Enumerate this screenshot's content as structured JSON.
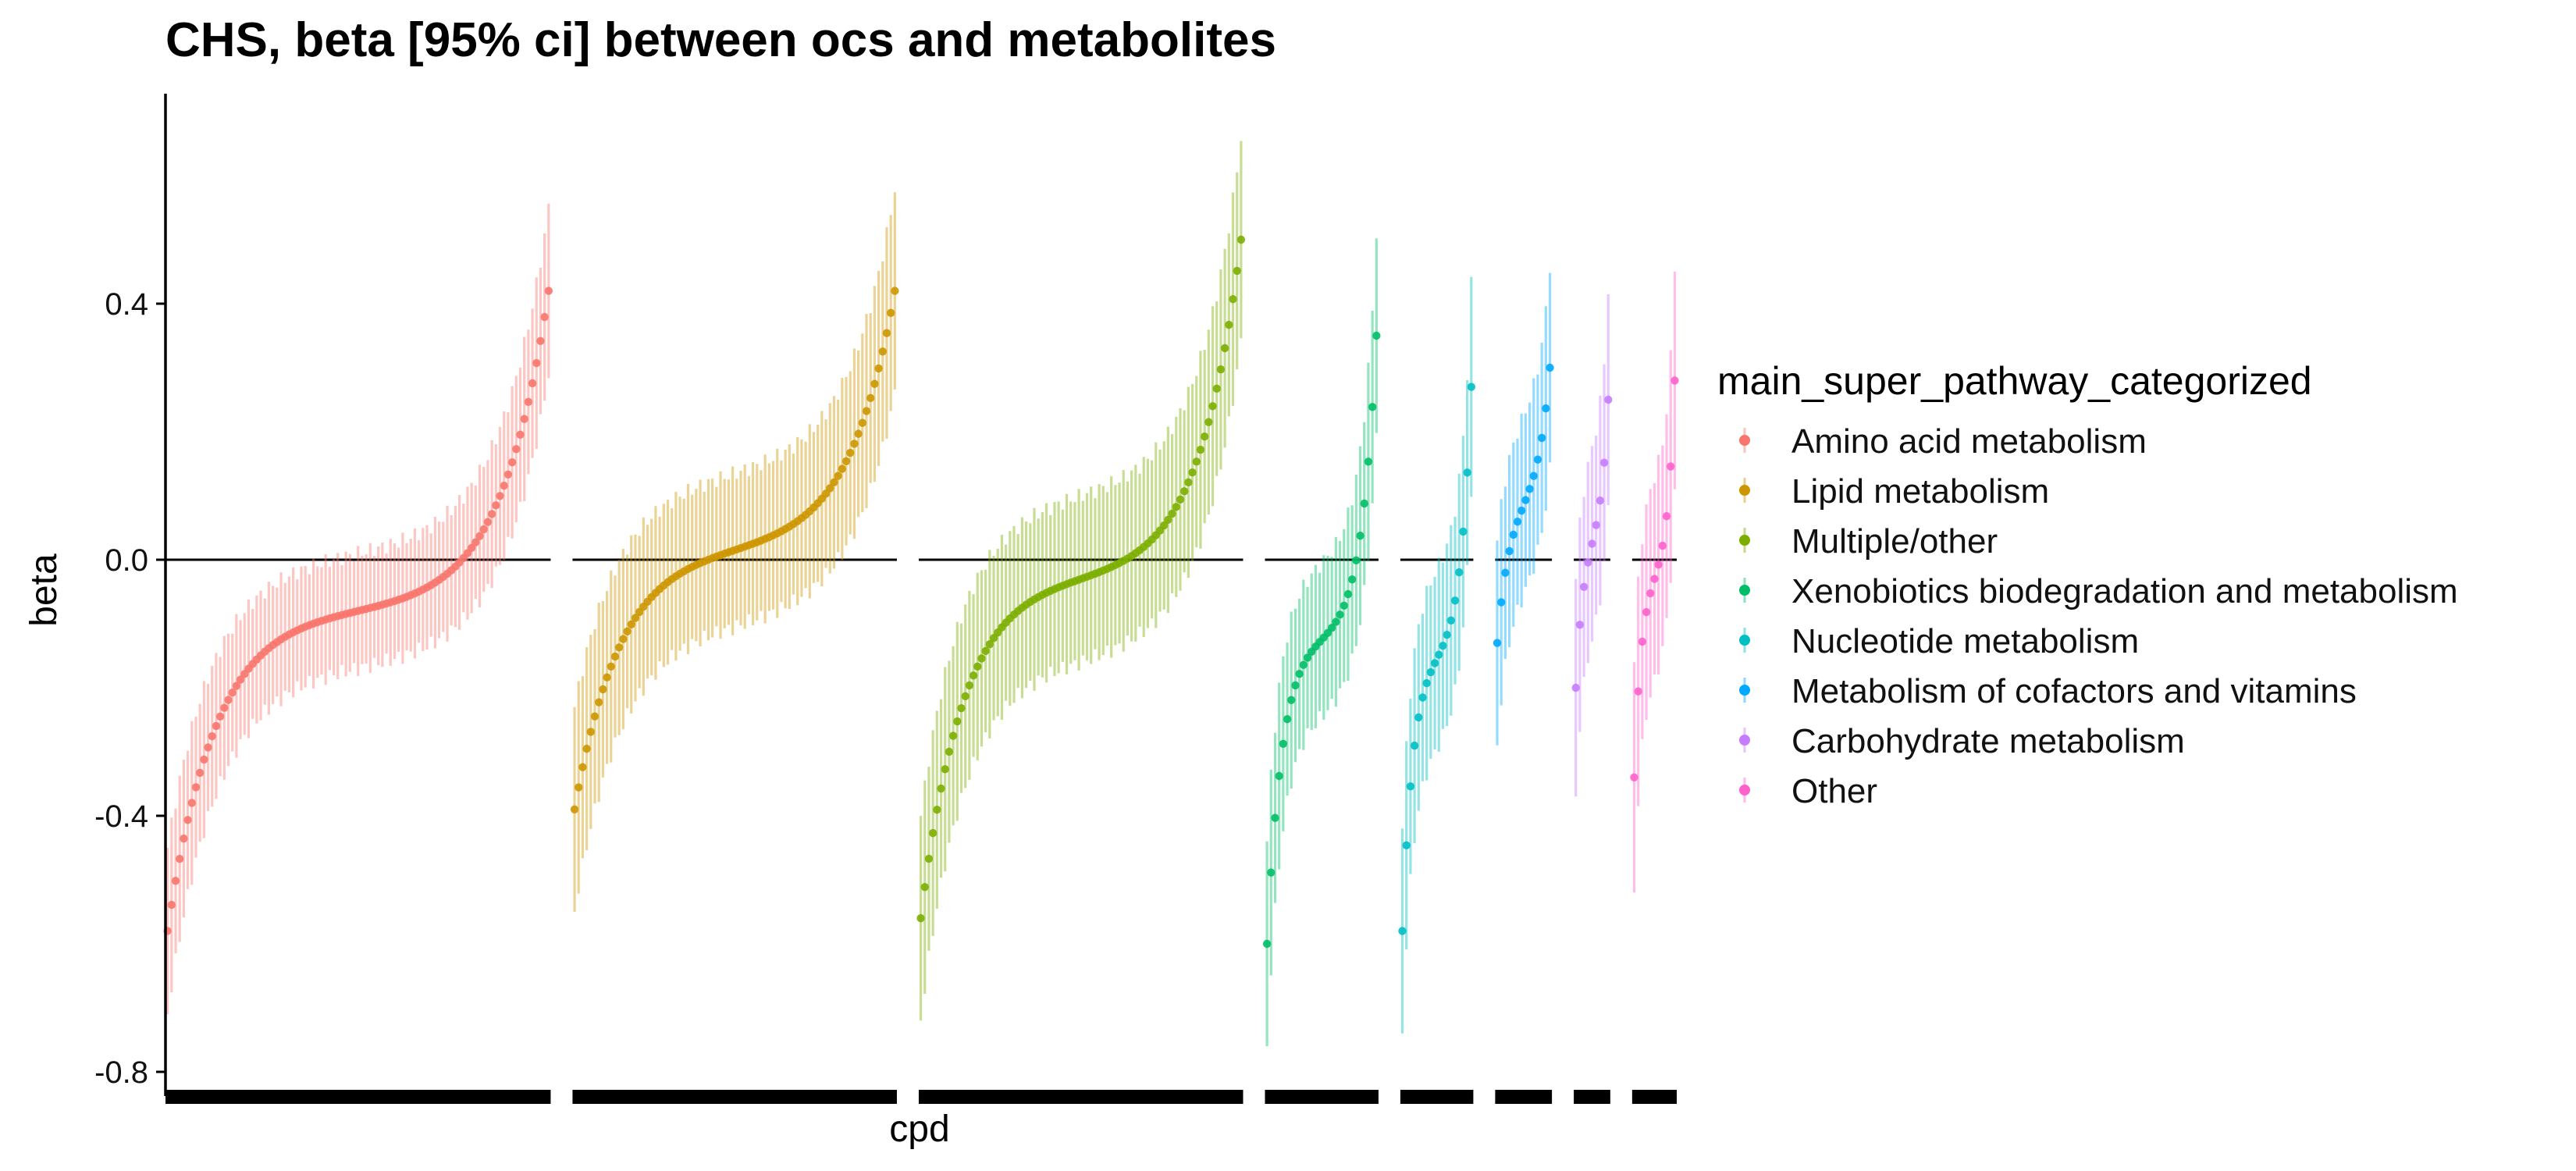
{
  "chart_data": {
    "type": "scatter",
    "title": "CHS, beta [95% ci] between ocs and metabolites",
    "xlabel": "cpd",
    "ylabel": "beta",
    "ylim": [
      -0.82,
      0.68
    ],
    "yticks": [
      0.4,
      0.0,
      -0.4,
      -0.8
    ],
    "ytick_labels": [
      "0.4",
      "0.0",
      "-0.4",
      "-0.8"
    ],
    "reference_line": 0.0,
    "grid": false,
    "legend": {
      "title": "main_super_pathway_categorized",
      "position": "right"
    },
    "series": [
      {
        "name": "Amino acid metabolism",
        "color": "#F8766D",
        "n": 95,
        "min": -0.58,
        "max": 0.42,
        "ci_half": 0.09,
        "ci_half_ends": 0.13,
        "shape": 4.0
      },
      {
        "name": "Lipid metabolism",
        "color": "#CD9600",
        "n": 80,
        "min": -0.39,
        "max": 0.42,
        "ci_half": 0.12,
        "ci_half_ends": 0.16,
        "shape": 3.5
      },
      {
        "name": "Multiple/other",
        "color": "#7CAE00",
        "n": 80,
        "min": -0.56,
        "max": 0.5,
        "ci_half": 0.13,
        "ci_half_ends": 0.16,
        "shape": 3.8
      },
      {
        "name": "Xenobiotics biodegradation and metabolism",
        "color": "#00BE67",
        "n": 28,
        "min": -0.6,
        "max": 0.35,
        "ci_half": 0.12,
        "ci_half_ends": 0.16,
        "shape": 3.6
      },
      {
        "name": "Nucleotide metabolism",
        "color": "#00BFC4",
        "n": 18,
        "min": -0.58,
        "max": 0.27,
        "ci_half": 0.14,
        "ci_half_ends": 0.16,
        "shape": 3.2
      },
      {
        "name": "Metabolism of cofactors and vitamins",
        "color": "#00A9FF",
        "n": 14,
        "min": -0.13,
        "max": 0.3,
        "ci_half": 0.14,
        "ci_half_ends": 0.16,
        "shape": 2.2
      },
      {
        "name": "Carbohydrate metabolism",
        "color": "#C77CFF",
        "n": 9,
        "min": -0.2,
        "max": 0.25,
        "ci_half": 0.15,
        "ci_half_ends": 0.17,
        "shape": 2.2
      },
      {
        "name": "Other",
        "color": "#FF61CC",
        "n": 11,
        "min": -0.34,
        "max": 0.28,
        "ci_half": 0.16,
        "ci_half_ends": 0.18,
        "shape": 2.8
      }
    ]
  }
}
